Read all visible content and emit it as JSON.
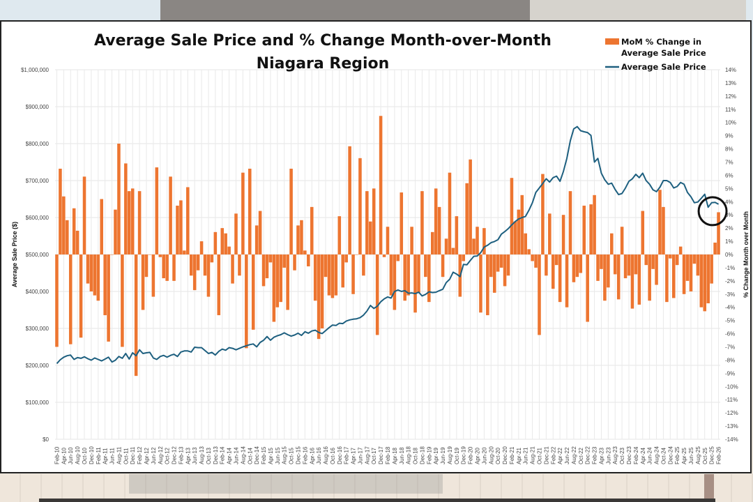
{
  "chart_data": {
    "type": "bar+line",
    "title": "Average Sale Price and % Change Month-over-Month",
    "subtitle": "Niagara Region",
    "ylabel_left": "Average Sale Price ($)",
    "ylabel_right": "% Change Month over Month",
    "ylim_left": [
      0,
      1000000
    ],
    "ylim_right": [
      -14,
      14
    ],
    "yticks_left": [
      "$0",
      "$100,000",
      "$200,000",
      "$300,000",
      "$400,000",
      "$500,000",
      "$600,000",
      "$700,000",
      "$800,000",
      "$900,000",
      "$1,000,000"
    ],
    "yticks_right": [
      "-14%",
      "-13%",
      "-12%",
      "-11%",
      "-10%",
      "-9%",
      "-8%",
      "-7%",
      "-6%",
      "-5%",
      "-4%",
      "-3%",
      "-2%",
      "-1%",
      "0%",
      "1%",
      "2%",
      "3%",
      "4%",
      "5%",
      "6%",
      "7%",
      "8%",
      "9%",
      "10%",
      "11%",
      "12%",
      "13%",
      "14%"
    ],
    "grid": true,
    "legend_position": "top-right",
    "legend": [
      {
        "name": "MoM % Change in Average Sale Price",
        "type": "bar",
        "color": "#ed7530"
      },
      {
        "name": "Average Sale Price",
        "type": "line",
        "color": "#1d5f7f"
      }
    ],
    "start_month": "Feb-10",
    "end_month": "Feb-26",
    "xtick_labels": [
      "Feb-10",
      "Apr-10",
      "Jun-10",
      "Aug-10",
      "Oct-10",
      "Dec-10",
      "Feb-11",
      "Apr-11",
      "Jun-11",
      "Aug-11",
      "Oct-11",
      "Dec-11",
      "Feb-12",
      "Apr-12",
      "Jun-12",
      "Aug-12",
      "Oct-12",
      "Dec-12",
      "Feb-13",
      "Apr-13",
      "Jun-13",
      "Aug-13",
      "Oct-13",
      "Dec-13",
      "Feb-14",
      "Apr-14",
      "Jun-14",
      "Aug-14",
      "Oct-14",
      "Dec-14",
      "Feb-15",
      "Apr-15",
      "Jun-15",
      "Aug-15",
      "Oct-15",
      "Dec-15",
      "Feb-16",
      "Apr-16",
      "Jun-16",
      "Aug-16",
      "Oct-16",
      "Dec-16",
      "Feb-17",
      "Apr-17",
      "Jun-17",
      "Aug-17",
      "Oct-17",
      "Dec-17",
      "Feb-18",
      "Apr-18",
      "Jun-18",
      "Aug-18",
      "Oct-18",
      "Dec-18",
      "Feb-19",
      "Apr-19",
      "Jun-19",
      "Aug-19",
      "Oct-19",
      "Dec-19",
      "Feb-20",
      "Apr-20",
      "Jun-20",
      "Aug-20",
      "Oct-20",
      "Dec-20",
      "Feb-21",
      "Apr-21",
      "Jun-21",
      "Aug-21",
      "Oct-21",
      "Dec-21",
      "Feb-22",
      "Apr-22",
      "Jun-22",
      "Aug-22",
      "Oct-22",
      "Dec-22",
      "Feb-23",
      "Apr-23",
      "Jun-23",
      "Aug-23",
      "Oct-23",
      "Dec-23",
      "Feb-24",
      "Apr-24",
      "Jun-24",
      "Aug-24",
      "Oct-24",
      "Dec-24",
      "Feb-25",
      "Apr-25",
      "Jun-25",
      "Aug-25",
      "Oct-25",
      "Dec-25",
      "Feb-26"
    ],
    "series": [
      {
        "name": "MoM % Change in Average Sale Price",
        "type": "bar",
        "unit": "%",
        "values": [
          -7.0,
          6.5,
          4.4,
          2.6,
          -6.8,
          3.5,
          1.8,
          -6.3,
          5.9,
          -2.2,
          -2.8,
          -3.1,
          -3.5,
          4.2,
          -4.6,
          -6.6,
          0.0,
          3.4,
          8.4,
          -7.0,
          6.9,
          4.8,
          5.0,
          -9.2,
          4.8,
          -4.2,
          -1.7,
          0.0,
          -3.2,
          6.6,
          -0.2,
          -1.8,
          -2.0,
          5.9,
          -2.0,
          3.7,
          4.1,
          0.3,
          5.1,
          -1.6,
          -2.7,
          -1.2,
          1.0,
          -1.6,
          -3.2,
          -0.6,
          1.7,
          -4.6,
          2.0,
          1.6,
          0.6,
          -2.2,
          3.1,
          -1.6,
          6.2,
          -7.1,
          6.5,
          -5.7,
          2.2,
          3.3,
          -2.4,
          -1.8,
          -0.6,
          -5.1,
          -4.0,
          -3.6,
          -1.0,
          -4.2,
          6.5,
          -1.2,
          2.2,
          2.6,
          0.3,
          -0.9,
          3.6,
          -3.5,
          -6.4,
          -5.6,
          -1.7,
          -3.1,
          -3.3,
          -3.1,
          2.9,
          -2.5,
          -0.6,
          8.2,
          -3.0,
          0.0,
          7.3,
          -1.6,
          4.8,
          2.5,
          5.0,
          -6.1,
          10.5,
          -0.2,
          2.1,
          -3.1,
          -4.2,
          -0.5,
          4.7,
          -3.5,
          -3.1,
          2.1,
          -4.4,
          -2.9,
          4.8,
          -1.7,
          -3.6,
          1.7,
          5.0,
          3.6,
          -1.7,
          1.2,
          6.2,
          0.5,
          2.9,
          -3.2,
          -0.5,
          5.4,
          7.2,
          1.2,
          2.1,
          -4.4,
          2.0,
          -4.6,
          -1.7,
          -2.9,
          -1.3,
          -1.0,
          -2.4,
          -1.6,
          5.8,
          2.5,
          3.4,
          4.5,
          1.6,
          0.4,
          -0.5,
          -1.0,
          -6.1,
          6.1,
          -1.6,
          3.1,
          -2.6,
          -0.8,
          -3.6,
          3.0,
          -4.0,
          4.8,
          -2.1,
          -1.7,
          -1.4,
          3.7,
          -5.1,
          3.8,
          4.5,
          -2.0,
          -1.1,
          -3.5,
          -2.5,
          1.6,
          -1.5,
          -3.4,
          2.1,
          -1.8,
          -1.6,
          -4.1,
          -1.5,
          -3.8,
          3.3,
          -0.8,
          -3.5,
          -1.1,
          -2.3,
          4.9,
          3.6,
          -3.6,
          -0.3,
          -3.3,
          -0.8,
          0.6,
          -3.0,
          -2.0,
          -2.8,
          -0.7,
          -1.6,
          -4.0,
          -4.3,
          -3.7,
          -2.2,
          0.9,
          3.2
        ],
        "color": "#ed7530"
      },
      {
        "name": "Average Sale Price",
        "type": "line",
        "unit": "$",
        "values": [
          205000,
          215000,
          222000,
          226000,
          228000,
          216000,
          221000,
          219000,
          223000,
          218000,
          214000,
          220000,
          216000,
          212000,
          217000,
          222000,
          209000,
          214000,
          224000,
          219000,
          232000,
          217000,
          234000,
          226000,
          242000,
          232000,
          234000,
          235000,
          220000,
          216000,
          224000,
          227000,
          222000,
          227000,
          230000,
          224000,
          236000,
          239000,
          239000,
          236000,
          249000,
          248000,
          248000,
          240000,
          232000,
          235000,
          228000,
          238000,
          244000,
          241000,
          248000,
          246000,
          242000,
          246000,
          250000,
          253000,
          256000,
          258000,
          250000,
          262000,
          268000,
          278000,
          268000,
          276000,
          280000,
          283000,
          288000,
          283000,
          279000,
          282000,
          287000,
          281000,
          291000,
          287000,
          293000,
          295000,
          289000,
          286000,
          294000,
          302000,
          309000,
          308000,
          314000,
          313000,
          320000,
          323000,
          325000,
          326000,
          329000,
          336000,
          347000,
          362000,
          354000,
          360000,
          372000,
          380000,
          385000,
          382000,
          400000,
          404000,
          400000,
          402000,
          395000,
          396000,
          394000,
          398000,
          388000,
          392000,
          399000,
          397000,
          398000,
          402000,
          406000,
          424000,
          433000,
          452000,
          447000,
          440000,
          473000,
          472000,
          484000,
          495000,
          496000,
          505000,
          520000,
          525000,
          532000,
          535000,
          540000,
          555000,
          562000,
          570000,
          580000,
          589000,
          596000,
          600000,
          603000,
          620000,
          640000,
          668000,
          680000,
          692000,
          705000,
          696000,
          708000,
          712000,
          698000,
          725000,
          760000,
          808000,
          840000,
          846000,
          835000,
          832000,
          830000,
          822000,
          750000,
          760000,
          720000,
          702000,
          690000,
          693000,
          676000,
          662000,
          665000,
          680000,
          698000,
          705000,
          717000,
          708000,
          720000,
          700000,
          690000,
          675000,
          670000,
          682000,
          700000,
          700000,
          695000,
          680000,
          684000,
          695000,
          690000,
          668000,
          656000,
          640000,
          642000,
          652000,
          663000,
          628000,
          640000,
          641000,
          636000
        ],
        "color": "#1d5f7f"
      }
    ],
    "annotation": {
      "type": "circle",
      "target": "latest data point (Feb-26)",
      "color": "#111111"
    }
  }
}
